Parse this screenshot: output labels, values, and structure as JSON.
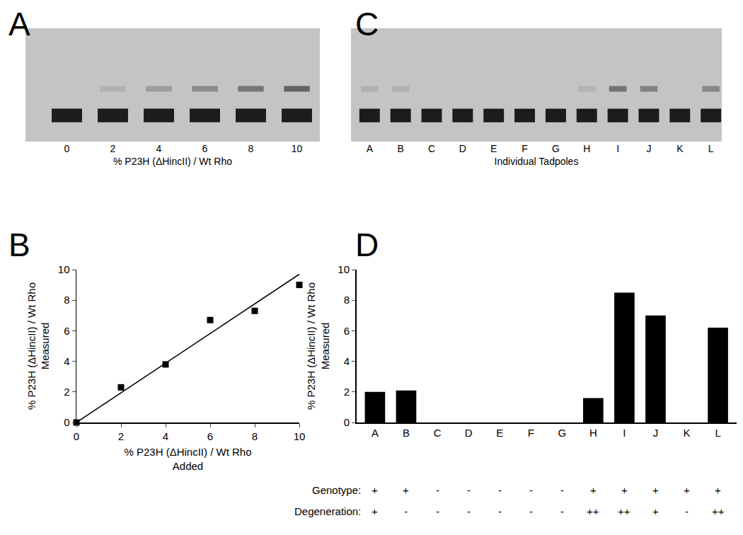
{
  "chart_data": [
    {
      "type": "gel",
      "title": "A",
      "categories": [
        "0",
        "2",
        "4",
        "6",
        "8",
        "10"
      ],
      "values": [
        0,
        2,
        4,
        6,
        8,
        10
      ],
      "x_label": "% P23H (ΔHincII) / Wt Rho"
    },
    {
      "type": "scatter",
      "title": "B",
      "series": [
        {
          "type": "scatter",
          "marker": "square",
          "color": "#000000",
          "x": [
            0,
            2,
            4,
            6,
            8,
            10
          ],
          "values": [
            0,
            2.3,
            3.8,
            6.7,
            7.3,
            9.0
          ]
        },
        {
          "type": "line",
          "line_style": "solid",
          "color": "#000000",
          "x": [
            0,
            10
          ],
          "values": [
            0,
            9.7
          ]
        }
      ],
      "x_label": "% P23H (ΔHincII) / Wt Rho\nAdded",
      "y_label": "% P23H (ΔHincII) / Wt Rho\nMeasured",
      "xlim": [
        0,
        10
      ],
      "ylim": [
        0,
        10
      ],
      "xticks": [
        0,
        2,
        4,
        6,
        8,
        10
      ],
      "yticks": [
        0,
        2,
        4,
        6,
        8,
        10
      ],
      "grid": false
    },
    {
      "type": "gel",
      "title": "C",
      "categories": [
        "A",
        "B",
        "C",
        "D",
        "E",
        "F",
        "G",
        "H",
        "I",
        "J",
        "K",
        "L"
      ],
      "values": [
        2.0,
        2.1,
        0,
        0,
        0,
        0,
        0,
        1.6,
        8.5,
        7.0,
        0,
        6.2
      ],
      "x_label": "Individual Tadpoles"
    },
    {
      "type": "bar",
      "title": "D",
      "categories": [
        "A",
        "B",
        "C",
        "D",
        "E",
        "F",
        "G",
        "H",
        "I",
        "J",
        "K",
        "L"
      ],
      "values": [
        2.0,
        2.1,
        0,
        0,
        0,
        0,
        0,
        1.6,
        8.5,
        7.0,
        0,
        6.2
      ],
      "color": "#000000",
      "y_label": "% P23H (ΔHincII) / Wt Rho\nMeasured",
      "ylim": [
        0,
        10
      ],
      "yticks": [
        0,
        2,
        4,
        6,
        8,
        10
      ],
      "grid": false,
      "annotations": [
        {
          "label": "Genotype:",
          "texts": [
            "+",
            "+",
            "-",
            "-",
            "-",
            "-",
            "-",
            "+",
            "+",
            "+",
            "+",
            "+"
          ]
        },
        {
          "label": "Degeneration:",
          "texts": [
            "+",
            "-",
            "-",
            "-",
            "-",
            "-",
            "-",
            "++",
            "++",
            "+",
            "-",
            "++"
          ]
        }
      ]
    }
  ]
}
